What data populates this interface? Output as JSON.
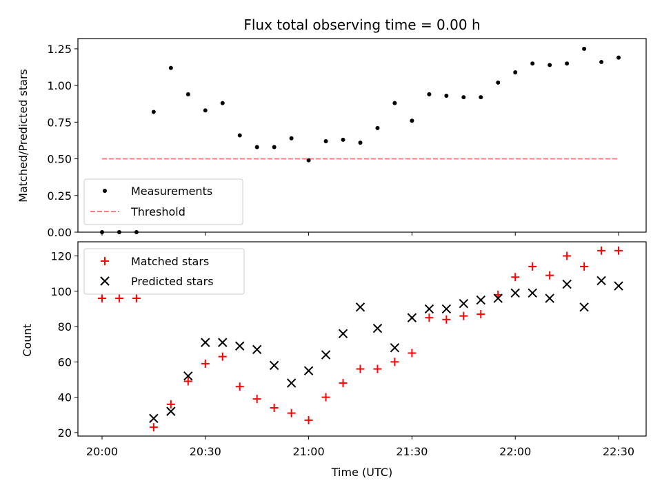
{
  "chart_data": [
    {
      "type": "scatter",
      "title": "Flux total observing time = 0.00 h",
      "ylabel": "Matched/Predicted stars",
      "xlabel": "",
      "ylim": [
        0,
        1.32
      ],
      "yticks": [
        "0.00",
        "0.25",
        "0.50",
        "0.75",
        "1.00",
        "1.25"
      ],
      "ytick_values": [
        0,
        0.25,
        0.5,
        0.75,
        1.0,
        1.25
      ],
      "legend_placement": "lower-left",
      "series": [
        {
          "name": "Measurements",
          "style": "dot",
          "color": "#000000",
          "x": [
            "20:00",
            "20:05",
            "20:10",
            "20:15",
            "20:20",
            "20:25",
            "20:30",
            "20:35",
            "20:40",
            "20:45",
            "20:50",
            "20:55",
            "21:00",
            "21:05",
            "21:10",
            "21:15",
            "21:20",
            "21:25",
            "21:30",
            "21:35",
            "21:40",
            "21:45",
            "21:50",
            "21:55",
            "22:00",
            "22:05",
            "22:10",
            "22:15",
            "22:20",
            "22:25",
            "22:30"
          ],
          "y": [
            0.0,
            0.0,
            0.0,
            0.82,
            1.12,
            0.94,
            0.83,
            0.88,
            0.66,
            0.58,
            0.58,
            0.64,
            0.49,
            0.62,
            0.63,
            0.61,
            0.71,
            0.88,
            0.76,
            0.94,
            0.93,
            0.92,
            0.92,
            1.02,
            1.09,
            1.15,
            1.14,
            1.15,
            1.25,
            1.16,
            1.19
          ]
        },
        {
          "name": "Threshold",
          "style": "dashed-line",
          "color": "#ff7f7f",
          "x": [
            "20:00",
            "22:30"
          ],
          "y": [
            0.5,
            0.5
          ]
        }
      ]
    },
    {
      "type": "scatter",
      "xlabel": "Time (UTC)",
      "ylabel": "Count",
      "ylim": [
        18,
        128
      ],
      "yticks": [
        "20",
        "40",
        "60",
        "80",
        "100",
        "120"
      ],
      "ytick_values": [
        20,
        40,
        60,
        80,
        100,
        120
      ],
      "xticks": [
        "20:00",
        "20:30",
        "21:00",
        "21:30",
        "22:00",
        "22:30"
      ],
      "xlim": [
        "19:53",
        "22:38"
      ],
      "legend_placement": "upper-left",
      "series": [
        {
          "name": "Matched stars",
          "style": "plus",
          "color": "#ff0000",
          "x": [
            "20:00",
            "20:05",
            "20:10",
            "20:15",
            "20:20",
            "20:25",
            "20:30",
            "20:35",
            "20:40",
            "20:45",
            "20:50",
            "20:55",
            "21:00",
            "21:05",
            "21:10",
            "21:15",
            "21:20",
            "21:25",
            "21:30",
            "21:35",
            "21:40",
            "21:45",
            "21:50",
            "21:55",
            "22:00",
            "22:05",
            "22:10",
            "22:15",
            "22:20",
            "22:25",
            "22:30"
          ],
          "y": [
            96,
            96,
            96,
            23,
            36,
            49,
            59,
            63,
            46,
            39,
            34,
            31,
            27,
            40,
            48,
            56,
            56,
            60,
            65,
            85,
            84,
            86,
            87,
            98,
            108,
            114,
            109,
            120,
            114,
            123,
            123
          ]
        },
        {
          "name": "Predicted stars",
          "style": "x",
          "color": "#000000",
          "x": [
            "20:15",
            "20:20",
            "20:25",
            "20:30",
            "20:35",
            "20:40",
            "20:45",
            "20:50",
            "20:55",
            "21:00",
            "21:05",
            "21:10",
            "21:15",
            "21:20",
            "21:25",
            "21:30",
            "21:35",
            "21:40",
            "21:45",
            "21:50",
            "21:55",
            "22:00",
            "22:05",
            "22:10",
            "22:15",
            "22:20",
            "22:25",
            "22:30"
          ],
          "y": [
            28,
            32,
            52,
            71,
            71,
            69,
            67,
            58,
            48,
            55,
            64,
            76,
            91,
            79,
            68,
            85,
            90,
            90,
            93,
            95,
            96,
            99,
            99,
            96,
            104,
            91,
            106,
            103
          ]
        }
      ]
    }
  ]
}
